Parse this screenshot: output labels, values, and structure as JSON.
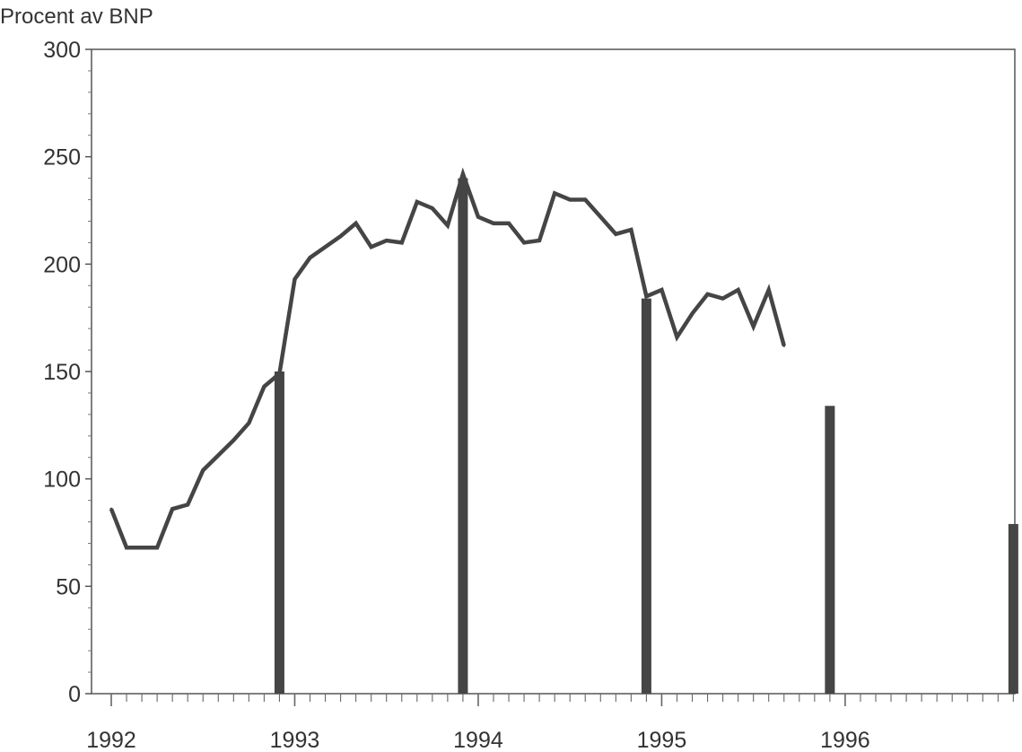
{
  "chart_data": {
    "type": "bar+line",
    "ylabel": "Procent av BNP",
    "ylim": [
      0,
      300
    ],
    "y_ticks": [
      0,
      50,
      100,
      150,
      200,
      250,
      300
    ],
    "x_ticks": [
      "1992",
      "1993",
      "1994",
      "1995",
      "1996"
    ],
    "x_range": [
      "1992-01",
      "1996-12"
    ],
    "grid": false,
    "legend": "none",
    "line_color": "#454545",
    "bar_color": "#454545",
    "series": [
      {
        "type": "line",
        "x": [
          "1992-01",
          "1992-02",
          "1992-03",
          "1992-04",
          "1992-05",
          "1992-06",
          "1992-07",
          "1992-08",
          "1992-09",
          "1992-10",
          "1992-11",
          "1992-12",
          "1993-01",
          "1993-02",
          "1993-03",
          "1993-04",
          "1993-05",
          "1993-06",
          "1993-07",
          "1993-08",
          "1993-09",
          "1993-10",
          "1993-11",
          "1993-12",
          "1994-01",
          "1994-02",
          "1994-03",
          "1994-04",
          "1994-05",
          "1994-06",
          "1994-07",
          "1994-08",
          "1994-09",
          "1994-10",
          "1994-11",
          "1994-12",
          "1995-01",
          "1995-02",
          "1995-03",
          "1995-04",
          "1995-05",
          "1995-06",
          "1995-07",
          "1995-08",
          "1995-09"
        ],
        "values": [
          86,
          68,
          68,
          68,
          86,
          88,
          104,
          111,
          118,
          126,
          143,
          149,
          193,
          203,
          208,
          213,
          219,
          208,
          211,
          210,
          229,
          226,
          218,
          242,
          222,
          219,
          219,
          210,
          211,
          233,
          230,
          230,
          222,
          214,
          216,
          185,
          188,
          166,
          177,
          186,
          184,
          188,
          171,
          188,
          162
        ]
      },
      {
        "type": "bar",
        "x": [
          "1992-12",
          "1993-12",
          "1994-12",
          "1995-12",
          "1996-12"
        ],
        "values": [
          150,
          240,
          184,
          134,
          79
        ]
      }
    ]
  }
}
